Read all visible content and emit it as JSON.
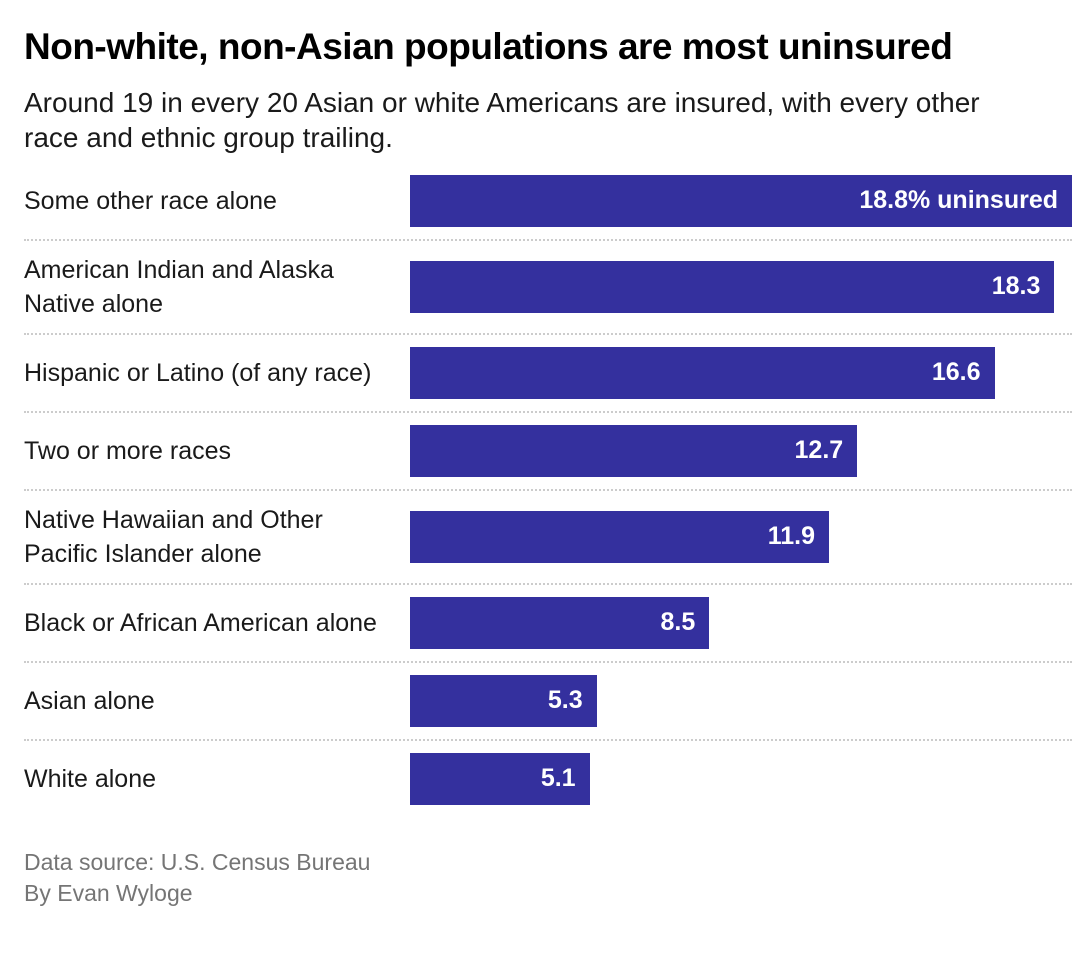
{
  "header": {
    "title": "Non-white, non-Asian populations are most uninsured",
    "subtitle": "Around 19 in every 20 Asian or white Americans are insured, with every other race and ethnic group trailing."
  },
  "chart_data": {
    "type": "bar",
    "orientation": "horizontal",
    "title": "Non-white, non-Asian populations are most uninsured",
    "subtitle": "Around 19 in every 20 Asian or white Americans are insured, with every other race and ethnic group trailing.",
    "xlabel": "",
    "ylabel": "",
    "xlim": [
      0,
      18.8
    ],
    "grid": false,
    "legend": "none",
    "bar_color": "#34309e",
    "separator_color": "#cccccc",
    "value_label_color": "#ffffff",
    "categories": [
      "Some other race alone",
      "American Indian and Alaska Native alone",
      "Hispanic or Latino (of any race)",
      "Two or more races",
      "Native Hawaiian and Other Pacific Islander alone",
      "Black or African American alone",
      "Asian alone",
      "White alone"
    ],
    "values": [
      18.8,
      18.3,
      16.6,
      12.7,
      11.9,
      8.5,
      5.3,
      5.1
    ],
    "value_labels": [
      "18.8% uninsured",
      "18.3",
      "16.6",
      "12.7",
      "11.9",
      "8.5",
      "5.3",
      "5.1"
    ]
  },
  "footer": {
    "source": "Data source: U.S. Census Bureau",
    "byline": "By Evan Wyloge"
  }
}
